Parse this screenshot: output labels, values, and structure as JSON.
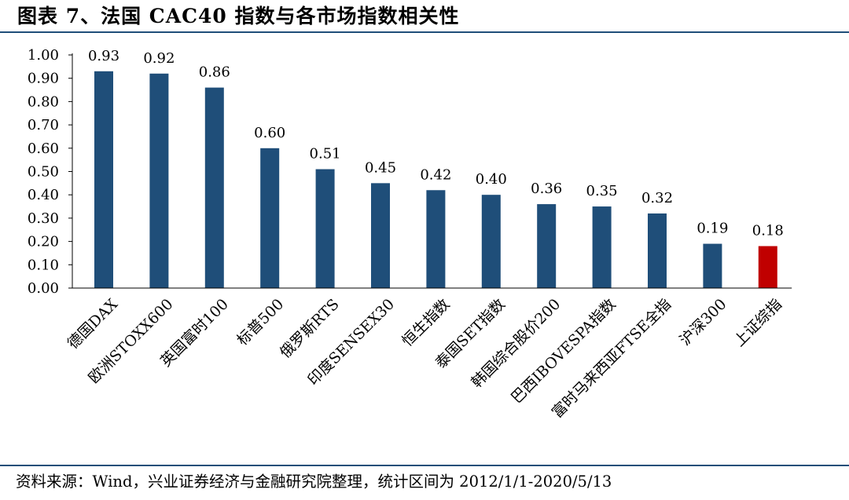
{
  "title": "图表 7、法国 CAC40 指数与各市场指数相关性",
  "source_note": "资料来源：Wind，兴业证券经济与金融研究院整理，统计区间为 2012/1/1-2020/5/13",
  "colors": {
    "bar": "#1f4e79",
    "highlight": "#c00000",
    "rule": "#1f4e79"
  },
  "chart_data": {
    "type": "bar",
    "title": "",
    "xlabel": "",
    "ylabel": "",
    "ylim": [
      0,
      1
    ],
    "yticks": [
      "0.00",
      "0.10",
      "0.20",
      "0.30",
      "0.40",
      "0.50",
      "0.60",
      "0.70",
      "0.80",
      "0.90",
      "1.00"
    ],
    "grid": false,
    "legend": "none",
    "categories": [
      "德国DAX",
      "欧洲STOXX600",
      "英国富时100",
      "标普500",
      "俄罗斯RTS",
      "印度SENSEX30",
      "恒生指数",
      "泰国SET指数",
      "韩国综合股价200",
      "巴西IBOVESPA指数",
      "富时马来西亚FTSE全指",
      "沪深300",
      "上证综指"
    ],
    "values": [
      0.93,
      0.92,
      0.86,
      0.6,
      0.51,
      0.45,
      0.42,
      0.4,
      0.36,
      0.35,
      0.32,
      0.19,
      0.18
    ],
    "data_labels": [
      "0.93",
      "0.92",
      "0.86",
      "0.60",
      "0.51",
      "0.45",
      "0.42",
      "0.40",
      "0.36",
      "0.35",
      "0.32",
      "0.19",
      "0.18"
    ],
    "highlight_category": "上证综指"
  }
}
